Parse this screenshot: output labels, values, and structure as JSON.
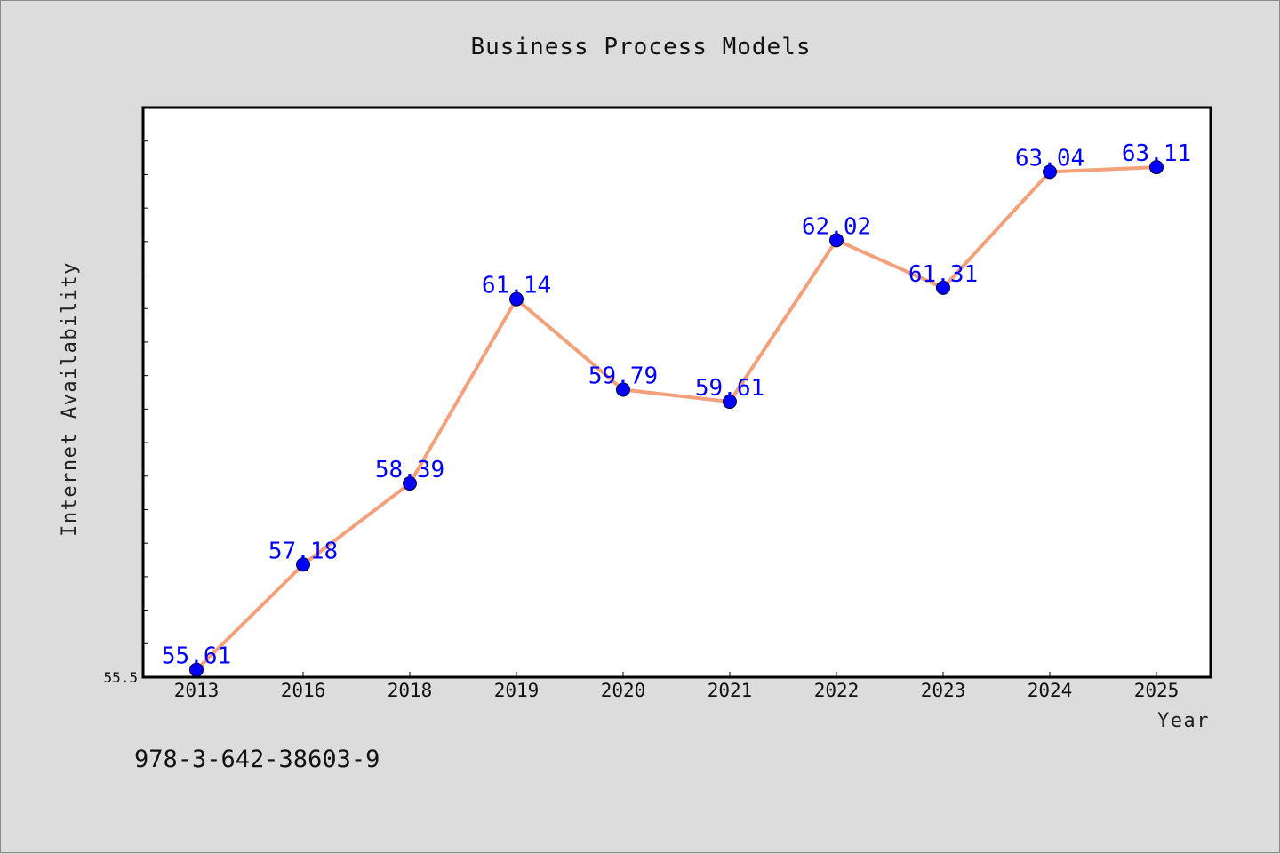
{
  "footer_text": "978-3-642-38603-9",
  "colors": {
    "background": "#dcdcdc",
    "plot_background": "#ffffff",
    "line": "#f4a07a",
    "marker": "#0000ff",
    "label": "#0000ff"
  },
  "chart_data": {
    "type": "line",
    "title": "Business Process Models",
    "xlabel": "Year",
    "ylabel": "Internet Availability",
    "categories": [
      "2013",
      "2016",
      "2018",
      "2019",
      "2020",
      "2021",
      "2022",
      "2023",
      "2024",
      "2025"
    ],
    "series": [
      {
        "values": [
          55.61,
          57.18,
          58.39,
          61.14,
          59.79,
          59.61,
          62.02,
          61.31,
          63.04,
          63.11
        ],
        "labels": [
          "55.61",
          "57.18",
          "58.39",
          "61.14",
          "59.79",
          "59.61",
          "62.02",
          "61.31",
          "63.04",
          "63.11"
        ]
      }
    ],
    "yticks": [
      "55.5"
    ],
    "ylim": [
      55.5,
      64.0
    ],
    "grid": false,
    "legend": false,
    "marker": "circle"
  }
}
